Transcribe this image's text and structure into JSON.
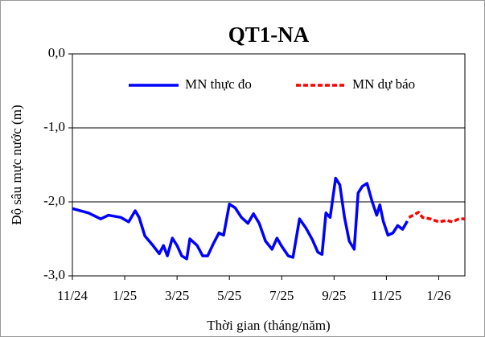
{
  "chart_data": {
    "type": "line",
    "title": "QT1-NA",
    "x_label": "Thời gian (tháng/năm)",
    "y_label": "Độ sâu mực nước (m)",
    "xlim": [
      0,
      15
    ],
    "ylim": [
      -3,
      0
    ],
    "xticks": [
      {
        "value": 0,
        "label": "11/24"
      },
      {
        "value": 2,
        "label": "1/25"
      },
      {
        "value": 4,
        "label": "3/25"
      },
      {
        "value": 6,
        "label": "5/25"
      },
      {
        "value": 8,
        "label": "7/25"
      },
      {
        "value": 10,
        "label": "9/25"
      },
      {
        "value": 12,
        "label": "11/25"
      },
      {
        "value": 14,
        "label": "1/26"
      }
    ],
    "yticks": [
      {
        "value": 0,
        "label": "0,0"
      },
      {
        "value": -1,
        "label": "-1,0"
      },
      {
        "value": -2,
        "label": "-2,0"
      },
      {
        "value": -3,
        "label": "-3,0"
      }
    ],
    "grid": true,
    "legend": "top",
    "series": [
      {
        "name": "MN thực đo",
        "color": "#0000ff",
        "dash": false,
        "x": [
          0,
          0.62,
          1.08,
          1.38,
          1.85,
          2.15,
          2.4,
          2.55,
          2.77,
          3.08,
          3.32,
          3.48,
          3.63,
          3.82,
          4.0,
          4.18,
          4.37,
          4.49,
          4.77,
          4.98,
          5.17,
          5.38,
          5.6,
          5.78,
          6.0,
          6.22,
          6.46,
          6.71,
          6.92,
          7.14,
          7.38,
          7.63,
          7.82,
          8.0,
          8.25,
          8.43,
          8.68,
          8.92,
          9.17,
          9.38,
          9.54,
          9.69,
          9.85,
          10.06,
          10.22,
          10.4,
          10.58,
          10.77,
          10.92,
          11.08,
          11.26,
          11.45,
          11.63,
          11.75,
          11.88,
          12.06,
          12.25,
          12.43,
          12.62,
          12.8
        ],
        "values": [
          -2.09,
          -2.15,
          -2.23,
          -2.18,
          -2.21,
          -2.27,
          -2.12,
          -2.21,
          -2.46,
          -2.59,
          -2.7,
          -2.59,
          -2.73,
          -2.49,
          -2.59,
          -2.73,
          -2.77,
          -2.5,
          -2.59,
          -2.73,
          -2.73,
          -2.57,
          -2.42,
          -2.45,
          -2.03,
          -2.08,
          -2.21,
          -2.29,
          -2.16,
          -2.29,
          -2.53,
          -2.64,
          -2.49,
          -2.6,
          -2.73,
          -2.75,
          -2.23,
          -2.35,
          -2.51,
          -2.68,
          -2.71,
          -2.15,
          -2.21,
          -1.68,
          -1.77,
          -2.21,
          -2.53,
          -2.64,
          -1.88,
          -1.79,
          -1.75,
          -1.99,
          -2.18,
          -2.04,
          -2.26,
          -2.45,
          -2.42,
          -2.32,
          -2.37,
          -2.26
        ]
      },
      {
        "name": "MN dự báo",
        "color": "#ff0000",
        "dash": true,
        "x": [
          12.86,
          13.08,
          13.23,
          13.38,
          13.69,
          14.0,
          14.31,
          14.52,
          14.77,
          15.0
        ],
        "values": [
          -2.21,
          -2.17,
          -2.14,
          -2.21,
          -2.23,
          -2.27,
          -2.25,
          -2.27,
          -2.23,
          -2.23
        ]
      }
    ]
  }
}
